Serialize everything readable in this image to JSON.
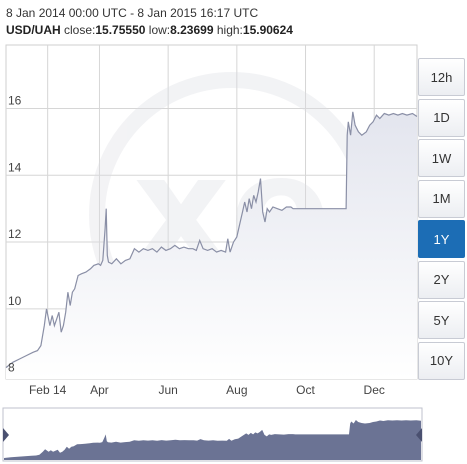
{
  "header": {
    "date_range": "8 Jan 2014 00:00 UTC - 8 Jan 2015 16:17 UTC",
    "pair": "USD/UAH",
    "close_label": "close:",
    "close_value": "15.75550",
    "low_label": "low:",
    "low_value": "8.23699",
    "high_label": "high:",
    "high_value": "15.90624"
  },
  "range_buttons": [
    {
      "label": "12h",
      "active": false
    },
    {
      "label": "1D",
      "active": false
    },
    {
      "label": "1W",
      "active": false
    },
    {
      "label": "1M",
      "active": false
    },
    {
      "label": "1Y",
      "active": true
    },
    {
      "label": "2Y",
      "active": false
    },
    {
      "label": "5Y",
      "active": false
    },
    {
      "label": "10Y",
      "active": false
    }
  ],
  "colors": {
    "line": "#8a8fa6",
    "area_top": "#e3e5ee",
    "grid": "#d6d6d6",
    "active_button": "#1c6db5",
    "navigator_fill": "#6b7394",
    "navigator_handle": "#4a5070"
  },
  "chart_data": {
    "type": "area",
    "title": "",
    "xlabel": "",
    "ylabel": "",
    "ylim": [
      7.9,
      17.9
    ],
    "yticks": [
      8,
      10,
      12,
      14,
      16
    ],
    "xlim": [
      "2014-01-08",
      "2015-01-08"
    ],
    "xtick_labels": [
      {
        "label": "Feb 14",
        "date": "2014-02-14"
      },
      {
        "label": "Apr",
        "date": "2014-04-01"
      },
      {
        "label": "Jun",
        "date": "2014-06-01"
      },
      {
        "label": "Aug",
        "date": "2014-08-01"
      },
      {
        "label": "Oct",
        "date": "2014-10-01"
      },
      {
        "label": "Dec",
        "date": "2014-12-01"
      }
    ],
    "series": [
      {
        "points": [
          [
            "2014-01-08",
            8.24
          ],
          [
            "2014-01-14",
            8.4
          ],
          [
            "2014-01-20",
            8.5
          ],
          [
            "2014-01-26",
            8.6
          ],
          [
            "2014-02-01",
            8.7
          ],
          [
            "2014-02-05",
            8.75
          ],
          [
            "2014-02-08",
            8.9
          ],
          [
            "2014-02-11",
            9.5
          ],
          [
            "2014-02-13",
            10.0
          ],
          [
            "2014-02-16",
            9.5
          ],
          [
            "2014-02-18",
            9.8
          ],
          [
            "2014-02-20",
            9.5
          ],
          [
            "2014-02-22",
            9.7
          ],
          [
            "2014-02-24",
            9.9
          ],
          [
            "2014-02-26",
            9.3
          ],
          [
            "2014-02-28",
            9.5
          ],
          [
            "2014-03-02",
            9.9
          ],
          [
            "2014-03-04",
            10.5
          ],
          [
            "2014-03-06",
            10.1
          ],
          [
            "2014-03-08",
            10.5
          ],
          [
            "2014-03-10",
            10.6
          ],
          [
            "2014-03-13",
            11.0
          ],
          [
            "2014-03-16",
            11.05
          ],
          [
            "2014-03-20",
            11.1
          ],
          [
            "2014-03-24",
            11.2
          ],
          [
            "2014-03-27",
            11.3
          ],
          [
            "2014-03-31",
            11.35
          ],
          [
            "2014-04-02",
            11.3
          ],
          [
            "2014-04-04",
            11.45
          ],
          [
            "2014-04-06",
            12.4
          ],
          [
            "2014-04-07",
            13.0
          ],
          [
            "2014-04-08",
            11.6
          ],
          [
            "2014-04-09",
            11.4
          ],
          [
            "2014-04-12",
            11.35
          ],
          [
            "2014-04-16",
            11.5
          ],
          [
            "2014-04-20",
            11.35
          ],
          [
            "2014-04-24",
            11.45
          ],
          [
            "2014-04-28",
            11.5
          ],
          [
            "2014-05-02",
            11.8
          ],
          [
            "2014-05-06",
            11.7
          ],
          [
            "2014-05-10",
            11.8
          ],
          [
            "2014-05-14",
            11.75
          ],
          [
            "2014-05-18",
            11.8
          ],
          [
            "2014-05-22",
            11.7
          ],
          [
            "2014-05-26",
            11.85
          ],
          [
            "2014-05-30",
            11.75
          ],
          [
            "2014-06-03",
            11.8
          ],
          [
            "2014-06-07",
            11.9
          ],
          [
            "2014-06-11",
            11.8
          ],
          [
            "2014-06-15",
            11.85
          ],
          [
            "2014-06-19",
            11.8
          ],
          [
            "2014-06-23",
            11.8
          ],
          [
            "2014-06-26",
            11.75
          ],
          [
            "2014-06-29",
            12.05
          ],
          [
            "2014-07-02",
            11.8
          ],
          [
            "2014-07-06",
            11.75
          ],
          [
            "2014-07-10",
            11.8
          ],
          [
            "2014-07-14",
            11.7
          ],
          [
            "2014-07-18",
            11.75
          ],
          [
            "2014-07-22",
            11.7
          ],
          [
            "2014-07-24",
            12.1
          ],
          [
            "2014-07-26",
            11.7
          ],
          [
            "2014-07-29",
            12.0
          ],
          [
            "2014-08-01",
            12.15
          ],
          [
            "2014-08-04",
            12.6
          ],
          [
            "2014-08-06",
            12.9
          ],
          [
            "2014-08-08",
            13.2
          ],
          [
            "2014-08-10",
            12.9
          ],
          [
            "2014-08-12",
            13.3
          ],
          [
            "2014-08-14",
            13.0
          ],
          [
            "2014-08-16",
            13.4
          ],
          [
            "2014-08-18",
            13.2
          ],
          [
            "2014-08-20",
            13.5
          ],
          [
            "2014-08-22",
            13.9
          ],
          [
            "2014-08-24",
            12.9
          ],
          [
            "2014-08-26",
            12.6
          ],
          [
            "2014-08-28",
            13.0
          ],
          [
            "2014-08-30",
            12.9
          ],
          [
            "2014-09-02",
            13.05
          ],
          [
            "2014-09-06",
            13.0
          ],
          [
            "2014-09-10",
            12.95
          ],
          [
            "2014-09-14",
            13.05
          ],
          [
            "2014-09-18",
            13.05
          ],
          [
            "2014-09-20",
            13.0
          ],
          [
            "2014-09-24",
            13.0
          ],
          [
            "2014-09-30",
            13.0
          ],
          [
            "2014-10-08",
            13.0
          ],
          [
            "2014-10-16",
            13.0
          ],
          [
            "2014-10-24",
            13.0
          ],
          [
            "2014-10-31",
            13.0
          ],
          [
            "2014-11-06",
            13.0
          ],
          [
            "2014-11-07",
            15.2
          ],
          [
            "2014-11-08",
            15.6
          ],
          [
            "2014-11-10",
            15.2
          ],
          [
            "2014-11-12",
            15.9
          ],
          [
            "2014-11-14",
            15.5
          ],
          [
            "2014-11-17",
            15.3
          ],
          [
            "2014-11-20",
            15.2
          ],
          [
            "2014-11-24",
            15.3
          ],
          [
            "2014-11-27",
            15.5
          ],
          [
            "2014-11-30",
            15.6
          ],
          [
            "2014-12-03",
            15.8
          ],
          [
            "2014-12-06",
            15.7
          ],
          [
            "2014-12-10",
            15.85
          ],
          [
            "2014-12-14",
            15.8
          ],
          [
            "2014-12-18",
            15.85
          ],
          [
            "2014-12-22",
            15.8
          ],
          [
            "2014-12-26",
            15.85
          ],
          [
            "2014-12-30",
            15.8
          ],
          [
            "2015-01-04",
            15.85
          ],
          [
            "2015-01-08",
            15.76
          ]
        ]
      }
    ]
  }
}
